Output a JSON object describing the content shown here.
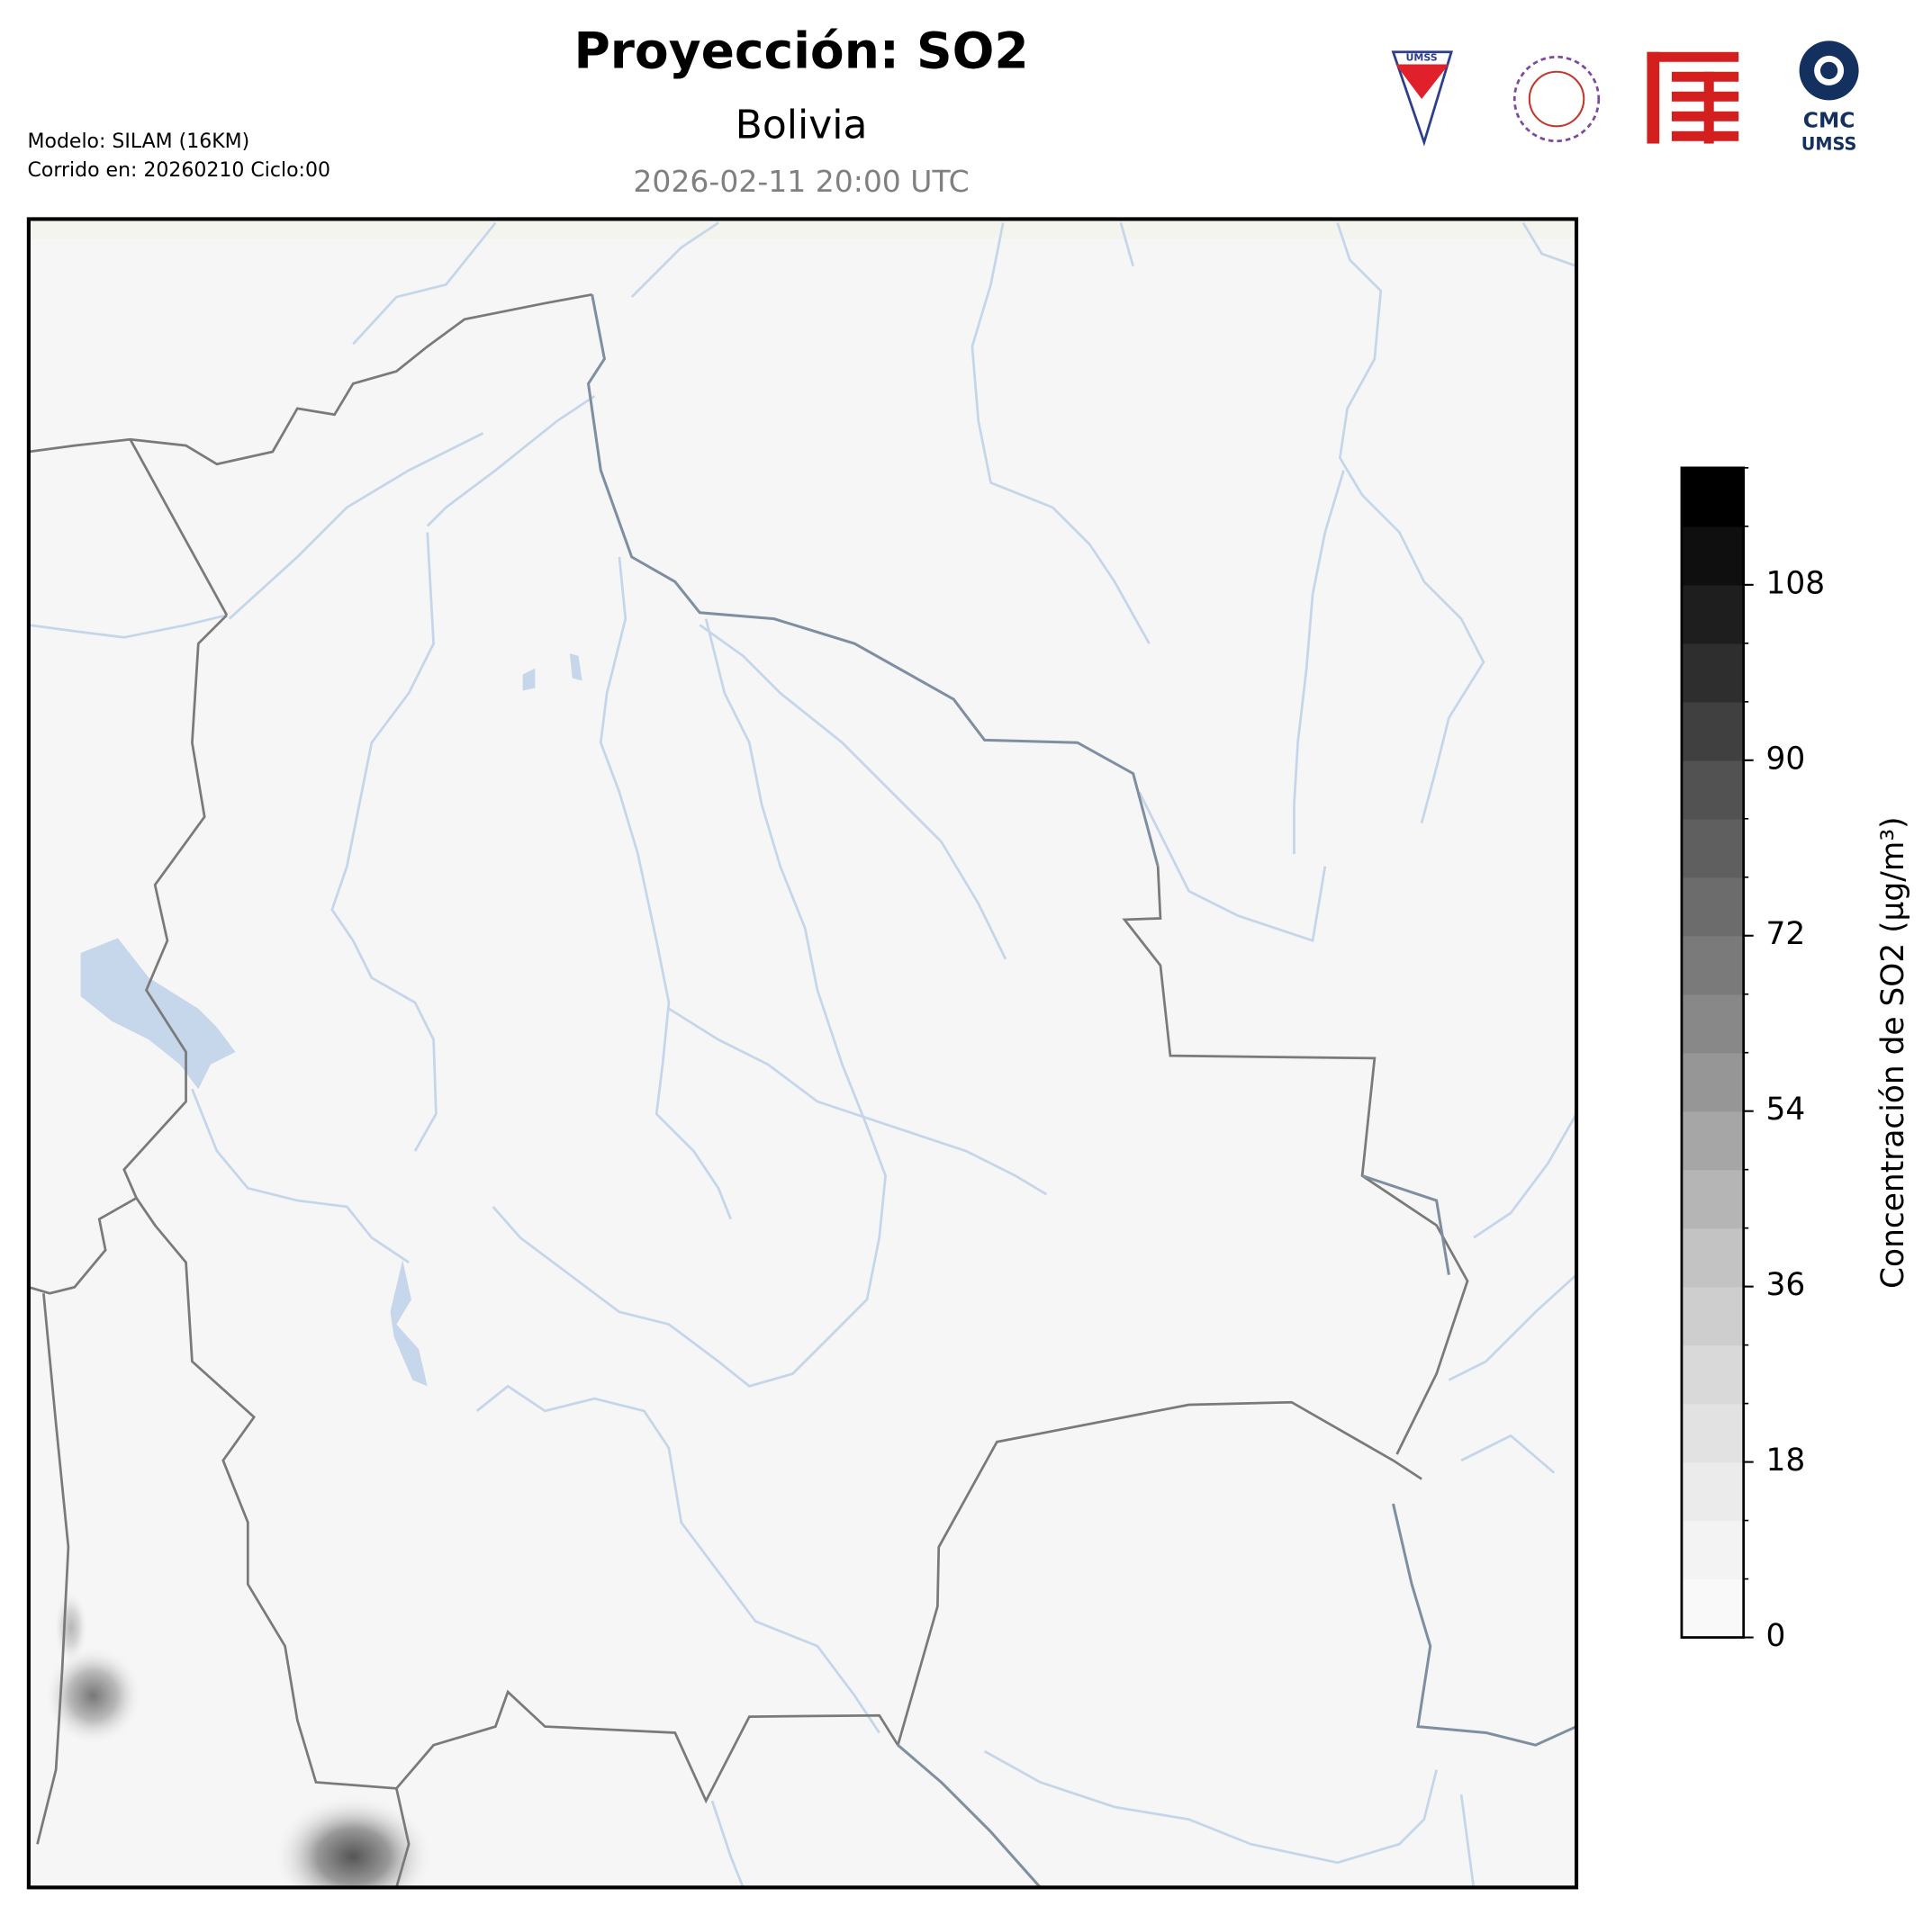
{
  "header": {
    "title": "Proyección: SO2",
    "subtitle": "Bolivia",
    "datetime": "2026-02-11 20:00 UTC",
    "model": "Modelo: SILAM (16KM)",
    "run": "Corrido en: 20260210 Ciclo:00"
  },
  "logos": {
    "umss": "UMSS",
    "cmc": "CMC",
    "cmc_sub": "UMSS"
  },
  "colorbar": {
    "label": "Concentración de SO2 (µg/m³)",
    "lim": [
      0,
      120
    ],
    "ticks": [
      0,
      18,
      36,
      54,
      72,
      90,
      108
    ],
    "levels": [
      0,
      6,
      12,
      18,
      24,
      30,
      36,
      42,
      48,
      54,
      60,
      66,
      72,
      78,
      84,
      90,
      96,
      102,
      108,
      114,
      120
    ],
    "cmap": "Greys"
  }
}
